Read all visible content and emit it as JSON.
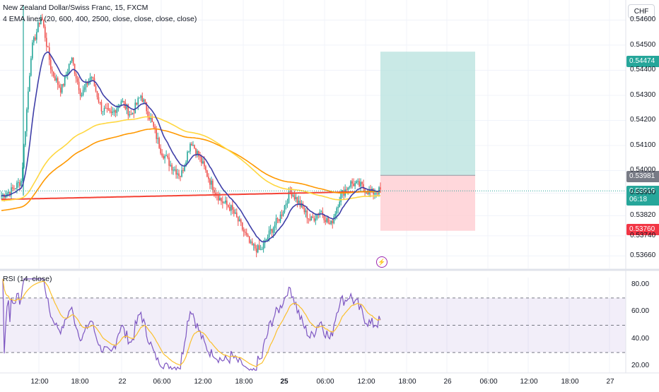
{
  "symbol_title": "New Zealand Dollar/Swiss Franc, 15, FXCM",
  "ema_legend": "4 EMA lines (20, 600, 400, 2500, close, close, close, close)",
  "rsi_legend": "RSI (14, close)",
  "currency_unit": "CHF",
  "price_axis_ticks": [
    "0.54600",
    "0.54500",
    "0.54400",
    "0.54300",
    "0.54200",
    "0.54100",
    "0.54000",
    "0.53900",
    "0.53820",
    "0.53740",
    "0.53660"
  ],
  "rsi_axis_ticks": [
    "80.00",
    "60.00",
    "40.00",
    "20.00"
  ],
  "time_axis_ticks": [
    "12:00",
    "18:00",
    "22",
    "06:00",
    "12:00",
    "18:00",
    "25",
    "06:00",
    "12:00",
    "18:00",
    "26",
    "06:00",
    "12:00",
    "18:00",
    "27"
  ],
  "price_labels": {
    "take_profit": "0.54474",
    "entry": "0.53981",
    "current_price": "0.53919",
    "countdown": "06:18",
    "stop_loss": "0.53760"
  },
  "colors": {
    "candle_up": "#26a69a",
    "candle_down": "#ef5350",
    "ema20": "#3f3fa8",
    "ema400": "#ffd740",
    "ema600": "#ff9800",
    "ema2500": "#f44336",
    "profit_zone": "#b2dfdb",
    "loss_zone": "#ffcdd2",
    "rsi_line": "#7e57c2",
    "rsi_ma": "#fbc02d"
  },
  "chart_data": {
    "type": "candlestick",
    "title": "New Zealand Dollar/Swiss Franc, 15, FXCM",
    "y_range": [
      0.5361,
      0.5468
    ],
    "position_tool": {
      "take_profit": 0.54474,
      "entry": 0.53981,
      "stop_loss": 0.5376
    },
    "key_closes": [
      0.539,
      0.5392,
      0.5396,
      0.5448,
      0.5462,
      0.544,
      0.5432,
      0.5445,
      0.543,
      0.5438,
      0.5425,
      0.5422,
      0.5428,
      0.5422,
      0.543,
      0.542,
      0.5408,
      0.5402,
      0.5398,
      0.5412,
      0.5404,
      0.5395,
      0.5388,
      0.5385,
      0.5378,
      0.537,
      0.5368,
      0.5376,
      0.5382,
      0.5392,
      0.5386,
      0.538,
      0.5384,
      0.5378,
      0.539,
      0.5395,
      0.5394,
      0.5391,
      0.5392
    ],
    "rsi": {
      "period": 14,
      "levels": [
        70,
        50,
        30
      ],
      "y_range": [
        15,
        85
      ]
    }
  }
}
